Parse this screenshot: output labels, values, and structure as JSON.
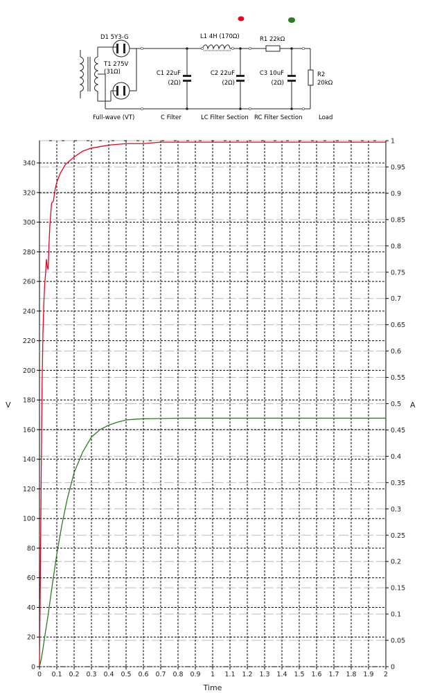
{
  "schematic": {
    "components": {
      "d1": "D1 5Y3-G",
      "t1": "T1 275V",
      "t1_r": "(31Ω)",
      "l1": "L1 4H (170Ω)",
      "r1": "R1 22kΩ",
      "c1": "C1 22uF",
      "c1_r": "(2Ω)",
      "c2": "C2 22uF",
      "c2_r": "(2Ω)",
      "c3": "C3 10uF",
      "c3_r": "(2Ω)",
      "r2": "R2",
      "r2_v": "20kΩ"
    },
    "sections": {
      "rectifier": "Full-wave (VT)",
      "cfilter": "C Filter",
      "lcfilter": "LC Filter Section",
      "rcfilter": "RC Filter Section",
      "load": "Load"
    },
    "indicators": {
      "probe_red": "#e8001c",
      "probe_green": "#2a7d1e"
    }
  },
  "chart_data": {
    "type": "line",
    "xlabel": "Time",
    "ylabel": "V",
    "y2label": "A",
    "xlim": [
      0,
      2
    ],
    "ylim": [
      0,
      355
    ],
    "y2lim": [
      0,
      1
    ],
    "xticks": [
      "0",
      "0.1",
      "0.2",
      "0.3",
      "0.4",
      "0.5",
      "0.6",
      "0.7",
      "0.8",
      "0.9",
      "1",
      "1.1",
      "1.2",
      "1.3",
      "1.4",
      "1.5",
      "1.6",
      "1.7",
      "1.8",
      "1.9",
      "2"
    ],
    "yticks": [
      "0",
      "20",
      "40",
      "60",
      "80",
      "100",
      "120",
      "140",
      "160",
      "180",
      "200",
      "220",
      "240",
      "260",
      "280",
      "300",
      "320",
      "340"
    ],
    "y2ticks": [
      "0",
      "0.05",
      "0.1",
      "0.15",
      "0.2",
      "0.25",
      "0.3",
      "0.35",
      "0.4",
      "0.45",
      "0.5",
      "0.55",
      "0.6",
      "0.65",
      "0.7",
      "0.75",
      "0.8",
      "0.85",
      "0.9",
      "0.95",
      "1"
    ],
    "grid": true,
    "series": [
      {
        "color": "#e8001c",
        "axis": "left",
        "x": [
          0,
          0.005,
          0.01,
          0.015,
          0.02,
          0.025,
          0.03,
          0.035,
          0.04,
          0.045,
          0.05,
          0.055,
          0.06,
          0.07,
          0.08,
          0.09,
          0.1,
          0.12,
          0.15,
          0.2,
          0.25,
          0.3,
          0.35,
          0.4,
          0.5,
          0.6,
          0.7,
          0.8,
          1,
          1.5,
          2
        ],
        "y": [
          0,
          60,
          130,
          190,
          225,
          245,
          258,
          265,
          275,
          270,
          268,
          285,
          298,
          313,
          314,
          322,
          327,
          333,
          339,
          344,
          348,
          350,
          351,
          352,
          353,
          353,
          354,
          354,
          354,
          354,
          354
        ]
      },
      {
        "color": "#2a7d1e",
        "axis": "left",
        "x": [
          0,
          0.01,
          0.02,
          0.03,
          0.05,
          0.07,
          0.1,
          0.13,
          0.16,
          0.2,
          0.25,
          0.3,
          0.35,
          0.4,
          0.45,
          0.5,
          0.55,
          0.6,
          0.7,
          0.8,
          1,
          1.5,
          2
        ],
        "y": [
          0,
          5,
          12,
          20,
          35,
          52,
          76,
          96,
          113,
          131,
          145,
          155,
          160,
          163,
          165,
          166.5,
          167,
          167.3,
          167.5,
          167.7,
          167.7,
          167.7,
          167.7
        ]
      }
    ]
  }
}
